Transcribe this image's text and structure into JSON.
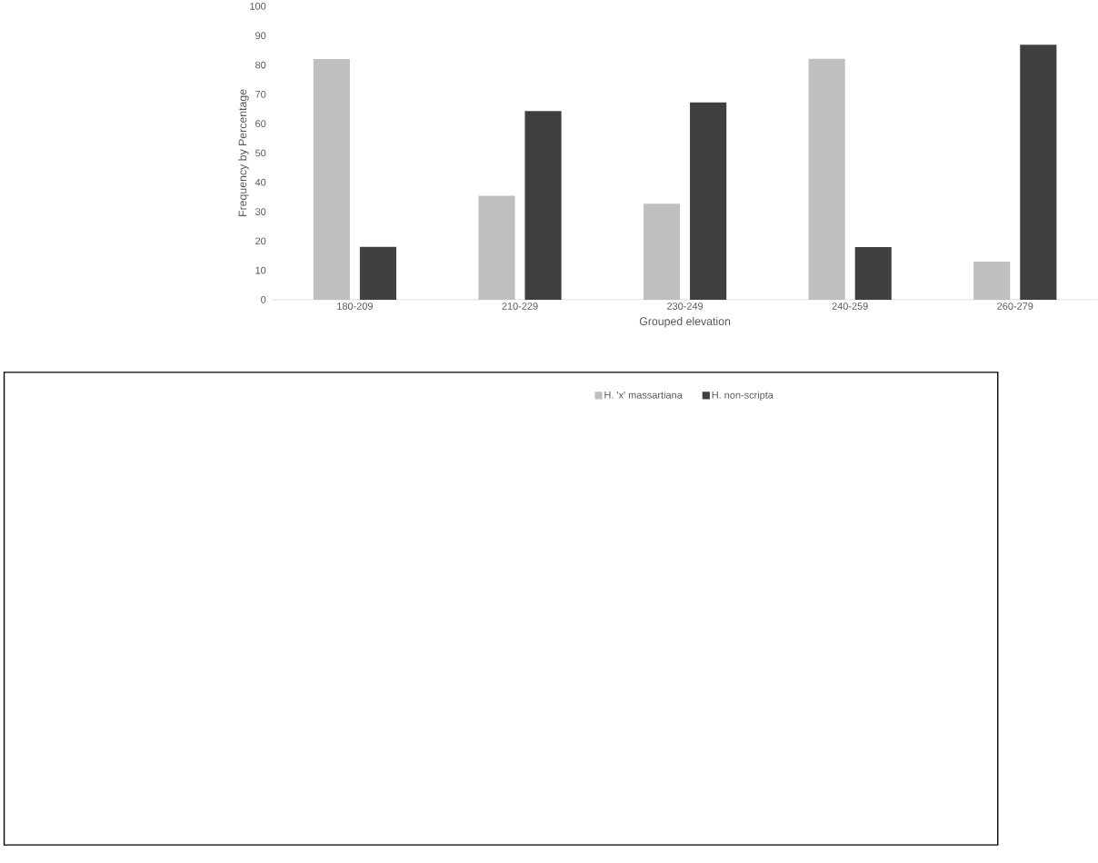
{
  "chart_data": {
    "type": "bar",
    "xlabel": "Grouped elevation",
    "ylabel": "Frequency by Percentage",
    "categories": [
      "180-209",
      "210-229",
      "230-249",
      "240-259",
      "260-279"
    ],
    "series": [
      {
        "name": "H. 'x' massartiana",
        "color": "#bfbfbf",
        "values": [
          82,
          35.4,
          32.7,
          82.1,
          13
        ]
      },
      {
        "name": "H. non-scripta",
        "color": "#404040",
        "values": [
          18,
          64.3,
          67.2,
          17.9,
          86.9
        ]
      }
    ],
    "ylim": [
      0,
      100
    ],
    "yticks": [
      0,
      10,
      20,
      30,
      40,
      50,
      60,
      70,
      80,
      90,
      100
    ],
    "grid": false,
    "legend": "bottom"
  }
}
